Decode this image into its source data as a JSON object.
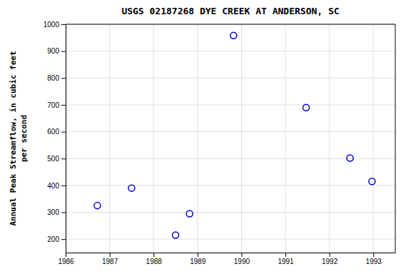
{
  "chart_data": {
    "type": "scatter",
    "title": "USGS 02187268 DYE CREEK AT ANDERSON, SC",
    "ylabel": "Annual Peak Streamflow, in cubic feet\nper second",
    "x": [
      1986.72,
      1987.5,
      1988.5,
      1988.82,
      1989.82,
      1991.47,
      1992.47,
      1992.97
    ],
    "values": [
      325,
      390,
      215,
      295,
      958,
      690,
      502,
      415
    ],
    "color": "#0000cc",
    "marker": "circle",
    "xlim": [
      1986,
      1993.5
    ],
    "ylim": [
      150,
      1000
    ],
    "xticks": [
      1986,
      1987,
      1988,
      1989,
      1990,
      1991,
      1992,
      1993
    ],
    "yticks": [
      200,
      300,
      400,
      500,
      600,
      700,
      800,
      900,
      1000
    ],
    "grid": true
  }
}
